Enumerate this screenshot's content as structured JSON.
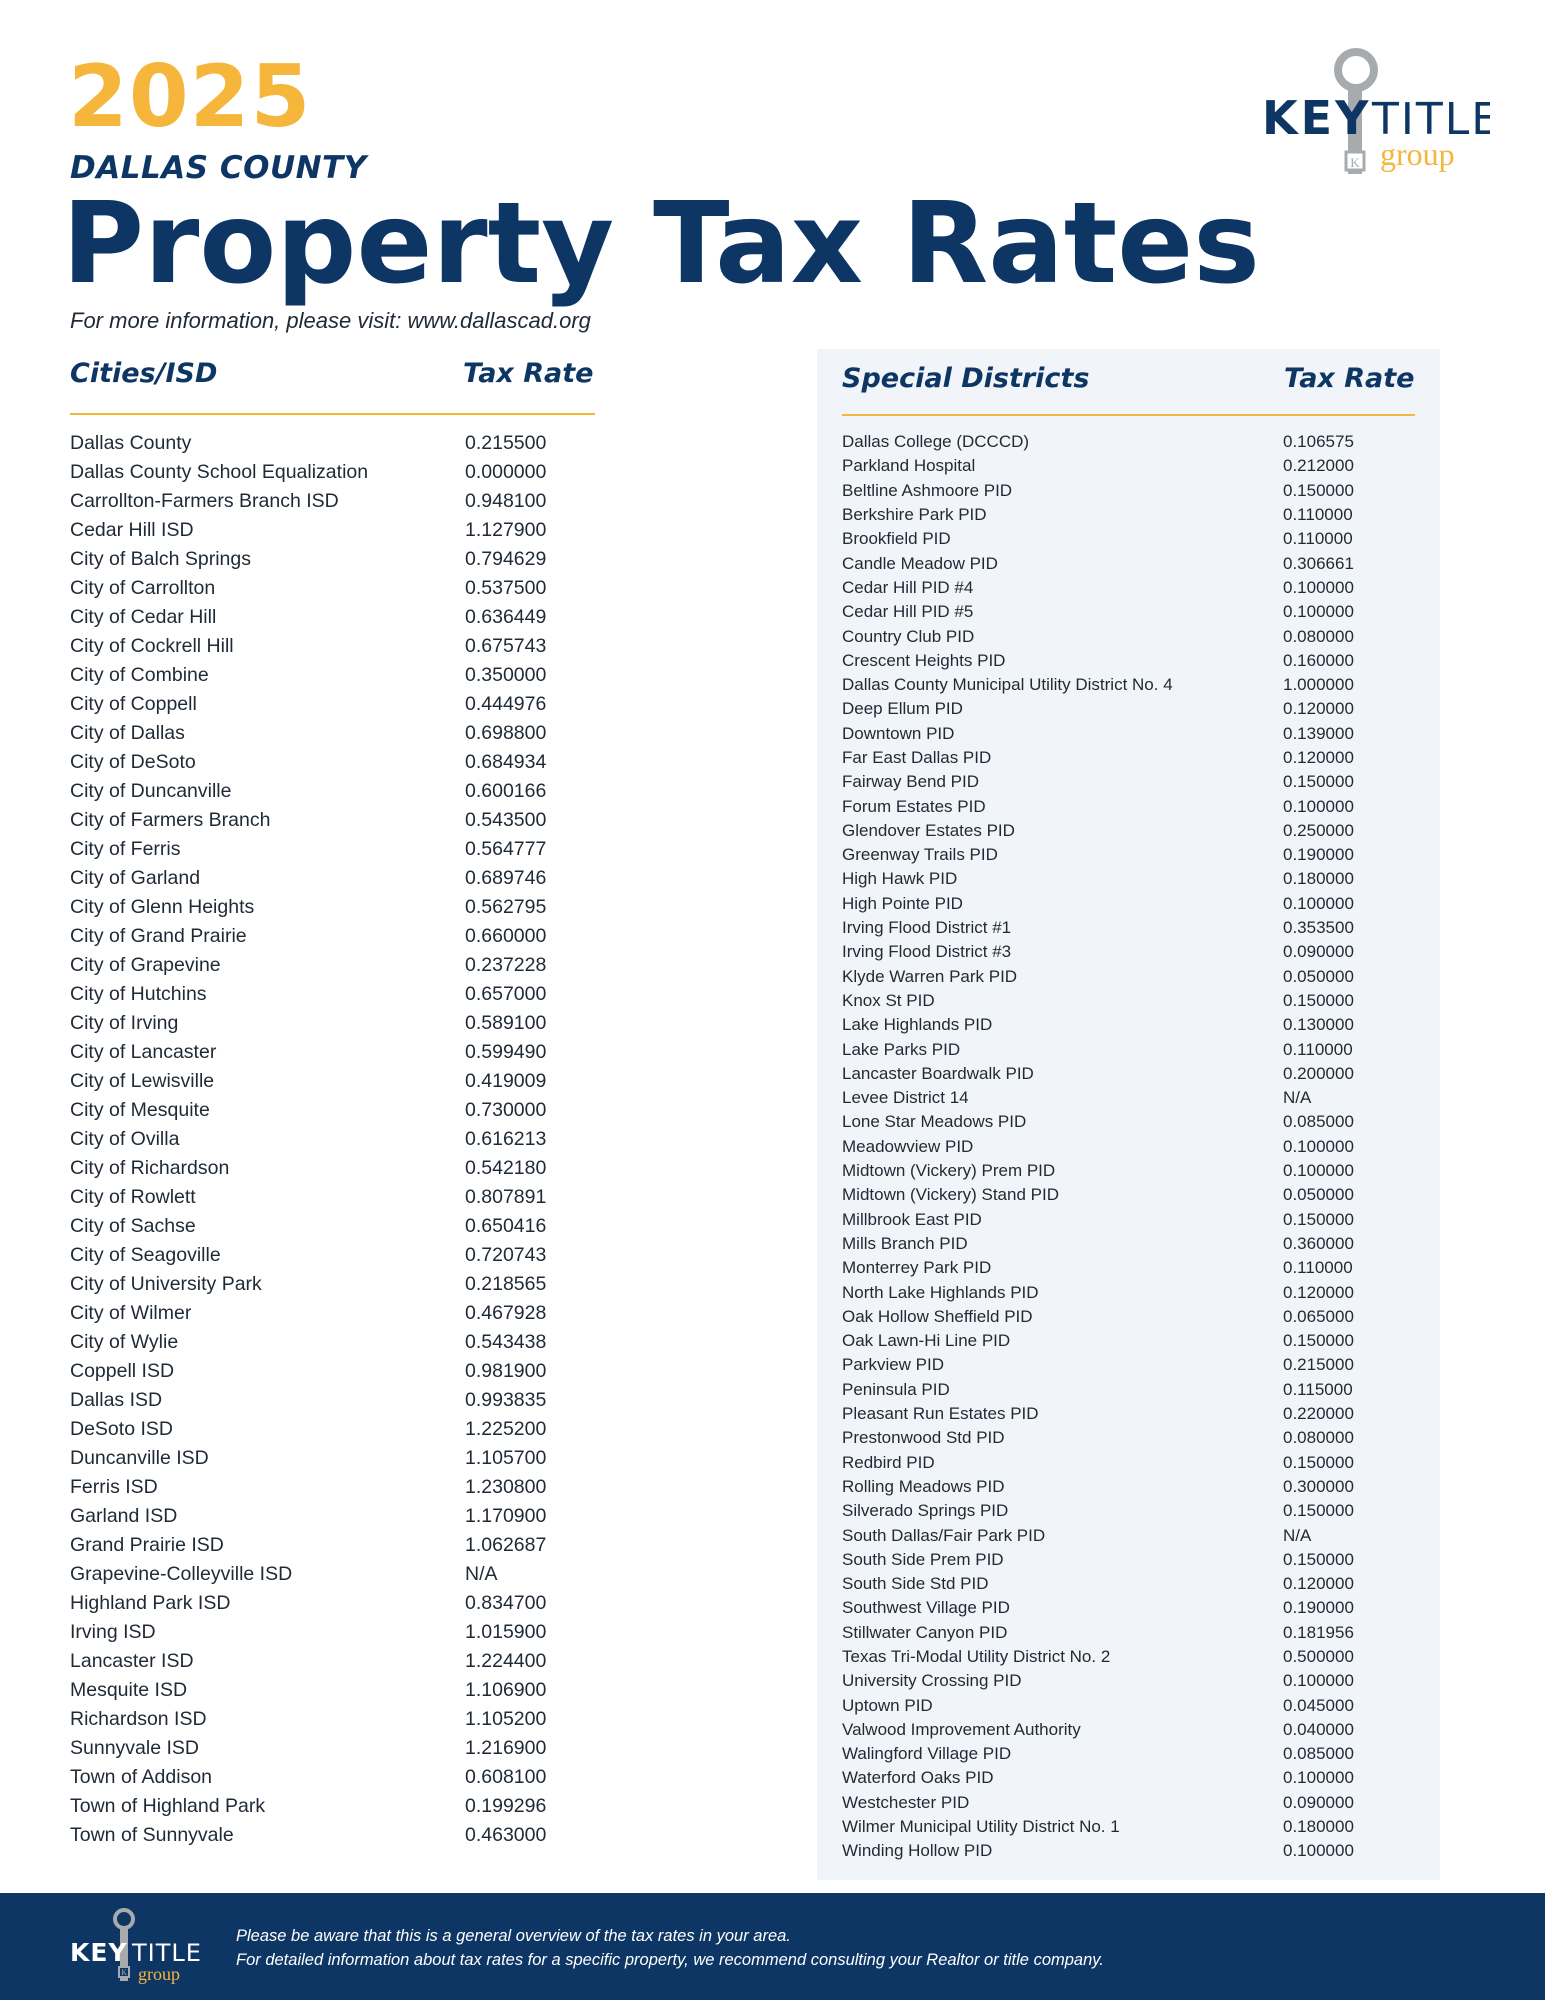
{
  "header": {
    "year": "2025",
    "county": "DALLAS COUNTY",
    "title": "Property Tax Rates",
    "info": "For more information, please visit: www.dallascad.org"
  },
  "logo": {
    "key": "KEY",
    "title": "TITLE",
    "group": "group",
    "badge": "K",
    "icon": "key-icon"
  },
  "cities": {
    "heading": "Cities/ISD",
    "rate_heading": "Tax Rate",
    "rows": [
      {
        "name": "Dallas County",
        "rate": "0.215500"
      },
      {
        "name": "Dallas County School Equalization",
        "rate": "0.000000"
      },
      {
        "name": "Carrollton-Farmers Branch ISD",
        "rate": "0.948100"
      },
      {
        "name": "Cedar Hill ISD",
        "rate": "1.127900"
      },
      {
        "name": "City of Balch Springs",
        "rate": "0.794629"
      },
      {
        "name": "City of Carrollton",
        "rate": "0.537500"
      },
      {
        "name": "City of Cedar Hill",
        "rate": "0.636449"
      },
      {
        "name": "City of Cockrell Hill",
        "rate": "0.675743"
      },
      {
        "name": "City of Combine",
        "rate": "0.350000"
      },
      {
        "name": "City of Coppell",
        "rate": "0.444976"
      },
      {
        "name": "City of Dallas",
        "rate": "0.698800"
      },
      {
        "name": "City of DeSoto",
        "rate": "0.684934"
      },
      {
        "name": "City of Duncanville",
        "rate": "0.600166"
      },
      {
        "name": "City of Farmers Branch",
        "rate": "0.543500"
      },
      {
        "name": "City of Ferris",
        "rate": "0.564777"
      },
      {
        "name": "City of Garland",
        "rate": "0.689746"
      },
      {
        "name": "City of Glenn Heights",
        "rate": "0.562795"
      },
      {
        "name": "City of Grand Prairie",
        "rate": "0.660000"
      },
      {
        "name": "City of Grapevine",
        "rate": "0.237228"
      },
      {
        "name": "City of Hutchins",
        "rate": "0.657000"
      },
      {
        "name": "City of Irving",
        "rate": "0.589100"
      },
      {
        "name": "City of Lancaster",
        "rate": "0.599490"
      },
      {
        "name": "City of Lewisville",
        "rate": "0.419009"
      },
      {
        "name": "City of Mesquite",
        "rate": "0.730000"
      },
      {
        "name": "City of Ovilla",
        "rate": "0.616213"
      },
      {
        "name": "City of Richardson",
        "rate": "0.542180"
      },
      {
        "name": "City of Rowlett",
        "rate": "0.807891"
      },
      {
        "name": "City of Sachse",
        "rate": "0.650416"
      },
      {
        "name": "City of Seagoville",
        "rate": "0.720743"
      },
      {
        "name": "City of University Park",
        "rate": "0.218565"
      },
      {
        "name": "City of Wilmer",
        "rate": "0.467928"
      },
      {
        "name": "City of Wylie",
        "rate": "0.543438"
      },
      {
        "name": "Coppell ISD",
        "rate": "0.981900"
      },
      {
        "name": "Dallas ISD",
        "rate": "0.993835"
      },
      {
        "name": "DeSoto ISD",
        "rate": "1.225200"
      },
      {
        "name": "Duncanville ISD",
        "rate": "1.105700"
      },
      {
        "name": "Ferris ISD",
        "rate": "1.230800"
      },
      {
        "name": "Garland ISD",
        "rate": "1.170900"
      },
      {
        "name": "Grand Prairie ISD",
        "rate": "1.062687"
      },
      {
        "name": "Grapevine-Colleyville ISD",
        "rate": "N/A"
      },
      {
        "name": "Highland Park ISD",
        "rate": "0.834700"
      },
      {
        "name": "Irving ISD",
        "rate": "1.015900"
      },
      {
        "name": "Lancaster ISD",
        "rate": "1.224400"
      },
      {
        "name": "Mesquite ISD",
        "rate": "1.106900"
      },
      {
        "name": "Richardson ISD",
        "rate": "1.105200"
      },
      {
        "name": "Sunnyvale ISD",
        "rate": "1.216900"
      },
      {
        "name": "Town of Addison",
        "rate": "0.608100"
      },
      {
        "name": "Town of Highland Park",
        "rate": "0.199296"
      },
      {
        "name": "Town of Sunnyvale",
        "rate": "0.463000"
      }
    ]
  },
  "special": {
    "heading": "Special Districts",
    "rate_heading": "Tax Rate",
    "rows": [
      {
        "name": "Dallas College (DCCCD)",
        "rate": "0.106575"
      },
      {
        "name": "Parkland Hospital",
        "rate": "0.212000"
      },
      {
        "name": "Beltline Ashmoore PID",
        "rate": "0.150000"
      },
      {
        "name": "Berkshire Park PID",
        "rate": "0.110000"
      },
      {
        "name": "Brookfield PID",
        "rate": "0.110000"
      },
      {
        "name": "Candle Meadow PID",
        "rate": "0.306661"
      },
      {
        "name": "Cedar Hill PID #4",
        "rate": "0.100000"
      },
      {
        "name": "Cedar Hill PID #5",
        "rate": "0.100000"
      },
      {
        "name": "Country Club PID",
        "rate": "0.080000"
      },
      {
        "name": "Crescent Heights PID",
        "rate": "0.160000"
      },
      {
        "name": "Dallas County Municipal Utility District No. 4",
        "rate": "1.000000"
      },
      {
        "name": "Deep Ellum PID",
        "rate": "0.120000"
      },
      {
        "name": "Downtown PID",
        "rate": "0.139000"
      },
      {
        "name": "Far East Dallas PID",
        "rate": "0.120000"
      },
      {
        "name": "Fairway Bend PID",
        "rate": "0.150000"
      },
      {
        "name": "Forum Estates PID",
        "rate": "0.100000"
      },
      {
        "name": "Glendover Estates PID",
        "rate": "0.250000"
      },
      {
        "name": "Greenway Trails PID",
        "rate": "0.190000"
      },
      {
        "name": "High Hawk PID",
        "rate": "0.180000"
      },
      {
        "name": "High Pointe PID",
        "rate": "0.100000"
      },
      {
        "name": "Irving Flood District #1",
        "rate": "0.353500"
      },
      {
        "name": "Irving Flood District #3",
        "rate": "0.090000"
      },
      {
        "name": "Klyde Warren Park PID",
        "rate": "0.050000"
      },
      {
        "name": "Knox St PID",
        "rate": "0.150000"
      },
      {
        "name": "Lake Highlands PID",
        "rate": "0.130000"
      },
      {
        "name": "Lake Parks PID",
        "rate": "0.110000"
      },
      {
        "name": "Lancaster Boardwalk PID",
        "rate": "0.200000"
      },
      {
        "name": "Levee District 14",
        "rate": "N/A"
      },
      {
        "name": "Lone Star Meadows PID",
        "rate": "0.085000"
      },
      {
        "name": "Meadowview PID",
        "rate": "0.100000"
      },
      {
        "name": "Midtown (Vickery) Prem PID",
        "rate": "0.100000"
      },
      {
        "name": "Midtown (Vickery) Stand PID",
        "rate": "0.050000"
      },
      {
        "name": "Millbrook East PID",
        "rate": "0.150000"
      },
      {
        "name": "Mills Branch PID",
        "rate": "0.360000"
      },
      {
        "name": "Monterrey Park PID",
        "rate": "0.110000"
      },
      {
        "name": "North Lake Highlands PID",
        "rate": "0.120000"
      },
      {
        "name": "Oak Hollow Sheffield PID",
        "rate": "0.065000"
      },
      {
        "name": "Oak Lawn-Hi Line PID",
        "rate": "0.150000"
      },
      {
        "name": "Parkview PID",
        "rate": "0.215000"
      },
      {
        "name": "Peninsula PID",
        "rate": "0.115000"
      },
      {
        "name": "Pleasant Run Estates PID",
        "rate": "0.220000"
      },
      {
        "name": "Prestonwood Std PID",
        "rate": "0.080000"
      },
      {
        "name": "Redbird PID",
        "rate": "0.150000"
      },
      {
        "name": "Rolling Meadows PID",
        "rate": "0.300000"
      },
      {
        "name": "Silverado Springs PID",
        "rate": "0.150000"
      },
      {
        "name": "South Dallas/Fair Park PID",
        "rate": "N/A"
      },
      {
        "name": "South Side Prem PID",
        "rate": "0.150000"
      },
      {
        "name": "South Side Std PID",
        "rate": "0.120000"
      },
      {
        "name": "Southwest Village PID",
        "rate": "0.190000"
      },
      {
        "name": "Stillwater Canyon PID",
        "rate": "0.181956"
      },
      {
        "name": "Texas Tri-Modal Utility District No. 2",
        "rate": "0.500000"
      },
      {
        "name": "University Crossing PID",
        "rate": "0.100000"
      },
      {
        "name": "Uptown PID",
        "rate": "0.045000"
      },
      {
        "name": "Valwood Improvement Authority",
        "rate": "0.040000"
      },
      {
        "name": "Walingford Village PID",
        "rate": "0.085000"
      },
      {
        "name": "Waterford Oaks PID",
        "rate": "0.100000"
      },
      {
        "name": "Westchester PID",
        "rate": "0.090000"
      },
      {
        "name": "Wilmer Municipal Utility District No. 1",
        "rate": "0.180000"
      },
      {
        "name": "Winding Hollow PID",
        "rate": "0.100000"
      }
    ]
  },
  "footer": {
    "line1": "Please be aware that this is a general overview of the tax rates in your area.",
    "line2": "For detailed information about tax rates for a specific property, we recommend consulting your Realtor or title company."
  },
  "colors": {
    "navy": "#0d3665",
    "gold": "#f6b63b",
    "panel": "#f1f4f8",
    "key_gray": "#a8abae"
  }
}
